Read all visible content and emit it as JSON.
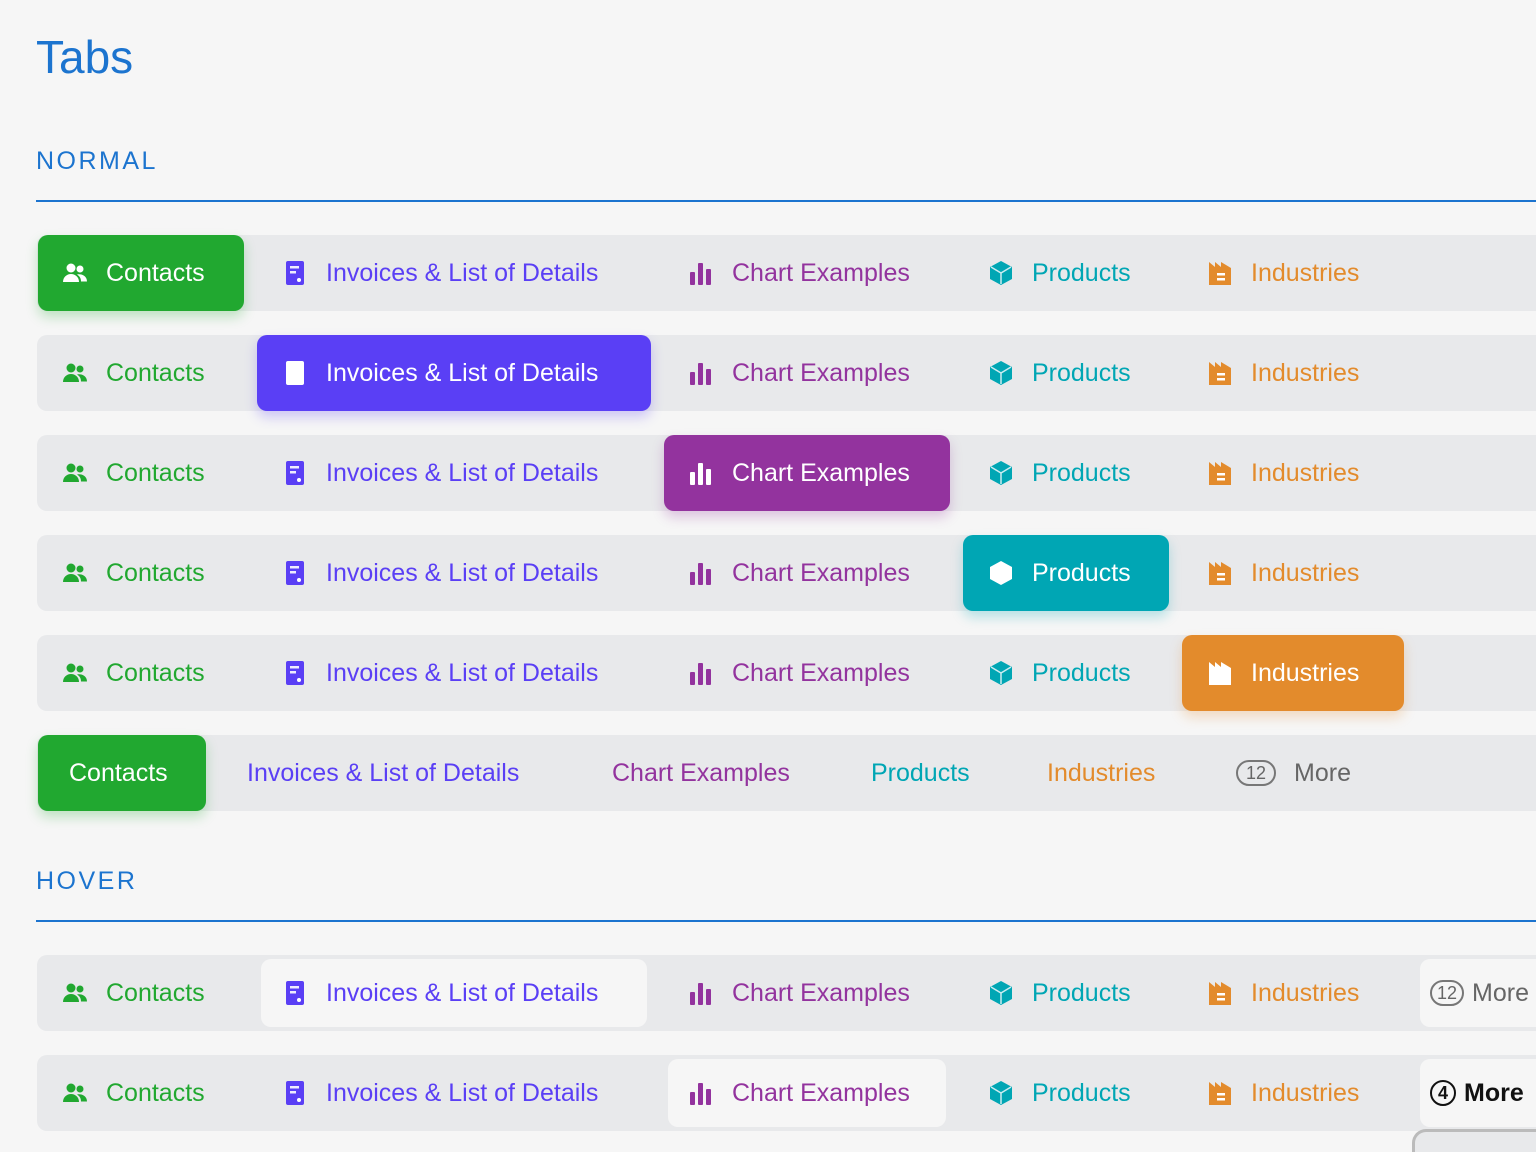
{
  "title": "Tabs",
  "sections": {
    "normal": "NORMAL",
    "hover": "HOVER"
  },
  "colors": {
    "contacts": "#21a830",
    "invoices": "#5a3ff5",
    "chart": "#93339e",
    "products": "#00a6b4",
    "industries": "#e38b2c",
    "accent": "#1c74cf"
  },
  "tabs": [
    {
      "label": "Contacts",
      "icon": "users-icon",
      "key": "contacts"
    },
    {
      "label": "Invoices & List of Details",
      "icon": "document-icon",
      "key": "invoices"
    },
    {
      "label": "Chart Examples",
      "icon": "bar-chart-icon",
      "key": "chart"
    },
    {
      "label": "Products",
      "icon": "box-icon",
      "key": "products"
    },
    {
      "label": "Industries",
      "icon": "factory-icon",
      "key": "industries"
    }
  ],
  "more": {
    "label": "More",
    "count_normal": "12",
    "count_hover_1": "12",
    "count_hover_2": "4"
  },
  "normal_rows": [
    {
      "active": 0
    },
    {
      "active": 1
    },
    {
      "active": 2
    },
    {
      "active": 3
    },
    {
      "active": 4
    },
    {
      "active": 0,
      "no_icons": true,
      "show_more": true
    }
  ],
  "hover_rows": [
    {
      "hovered": 1,
      "more_count": "12"
    },
    {
      "hovered": 2,
      "more_count": "4",
      "more_dark": true
    }
  ]
}
